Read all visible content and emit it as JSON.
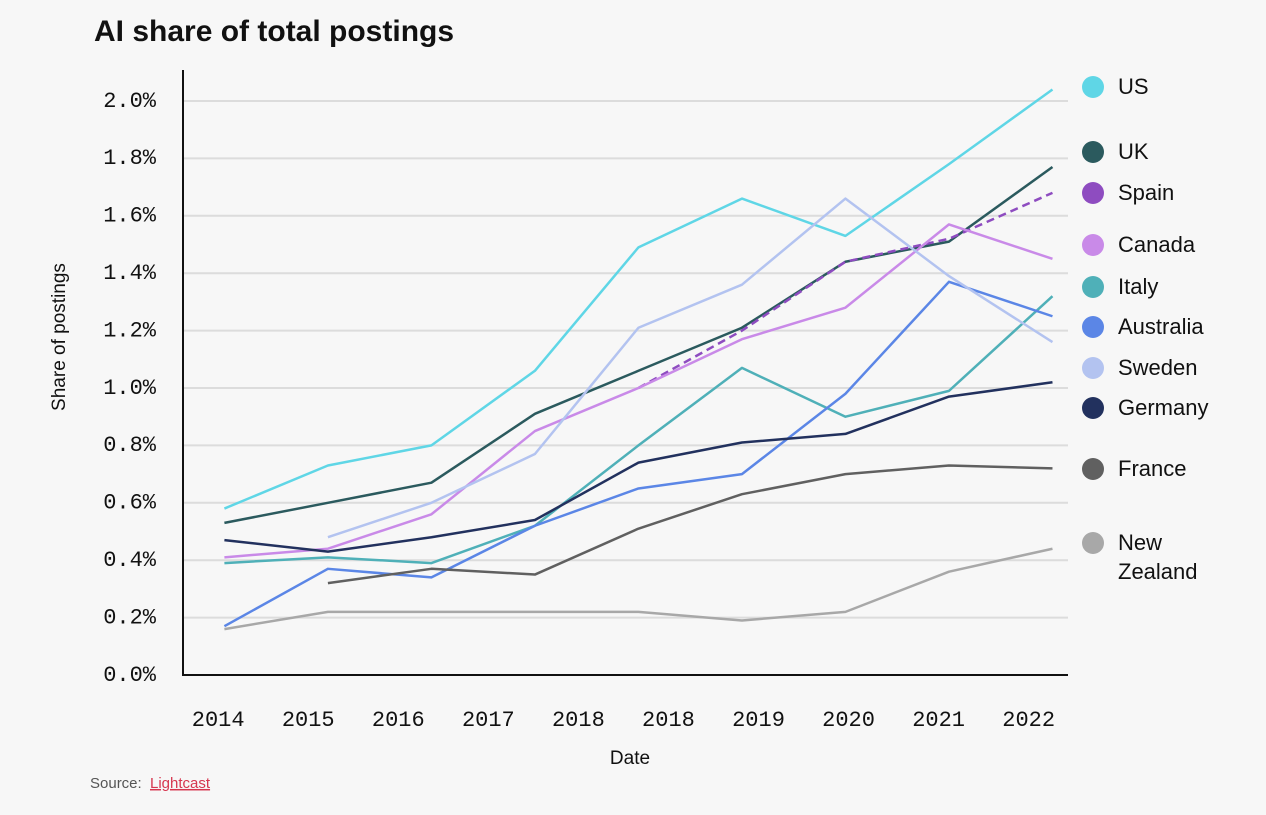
{
  "chart_data": {
    "type": "line",
    "title": "AI share of total postings",
    "x_label": "Date",
    "y_label": "Share of postings",
    "source_label": "Source:",
    "source_link": "Lightcast",
    "x": [
      2014,
      2015,
      2016,
      2017,
      2018,
      2019,
      2020,
      2021,
      2022
    ],
    "xlim": [
      2013.6,
      2022.15
    ],
    "xticks": [
      {
        "value": 2013.94,
        "label": "2014"
      },
      {
        "value": 2014.81,
        "label": "2015"
      },
      {
        "value": 2015.68,
        "label": "2016"
      },
      {
        "value": 2016.55,
        "label": "2017"
      },
      {
        "value": 2017.42,
        "label": "2018"
      },
      {
        "value": 2018.29,
        "label": "2018"
      },
      {
        "value": 2019.16,
        "label": "2019"
      },
      {
        "value": 2020.03,
        "label": "2020"
      },
      {
        "value": 2020.9,
        "label": "2021"
      },
      {
        "value": 2021.77,
        "label": "2022"
      }
    ],
    "ylim": [
      0,
      2.1
    ],
    "yticks": [
      {
        "value": 0,
        "label": "0.0%"
      },
      {
        "value": 0.2,
        "label": "0.2%"
      },
      {
        "value": 0.4,
        "label": "0.4%"
      },
      {
        "value": 0.6,
        "label": "0.6%"
      },
      {
        "value": 0.8,
        "label": "0.8%"
      },
      {
        "value": 1,
        "label": "1.0%"
      },
      {
        "value": 1.2,
        "label": "1.2%"
      },
      {
        "value": 1.4,
        "label": "1.4%"
      },
      {
        "value": 1.6,
        "label": "1.6%"
      },
      {
        "value": 1.8,
        "label": "1.8%"
      },
      {
        "value": 2,
        "label": "2.0%"
      }
    ],
    "grid": true,
    "legend": "right",
    "series": [
      {
        "name": "US",
        "color": "#5fd6e6",
        "values": [
          0.58,
          0.73,
          0.8,
          1.06,
          1.49,
          1.66,
          1.53,
          1.78,
          2.04
        ]
      },
      {
        "name": "UK",
        "color": "#2b5a5e",
        "values": [
          0.53,
          0.6,
          0.67,
          0.91,
          1.06,
          1.21,
          1.44,
          1.51,
          1.77
        ]
      },
      {
        "name": "Spain",
        "color": "#8e4cc0",
        "dashed": true,
        "values": [
          null,
          null,
          null,
          null,
          1.0,
          1.2,
          1.44,
          1.52,
          1.68
        ]
      },
      {
        "name": "Canada",
        "color": "#c98ae8",
        "values": [
          0.41,
          0.44,
          0.56,
          0.85,
          1.0,
          1.17,
          1.28,
          1.57,
          1.45
        ]
      },
      {
        "name": "Italy",
        "color": "#4fb0b8",
        "values": [
          0.39,
          0.41,
          0.39,
          0.52,
          0.8,
          1.07,
          0.9,
          0.99,
          1.32
        ]
      },
      {
        "name": "Australia",
        "color": "#5b86e6",
        "values": [
          0.17,
          0.37,
          0.34,
          0.52,
          0.65,
          0.7,
          0.98,
          1.37,
          1.25
        ]
      },
      {
        "name": "Sweden",
        "color": "#b3c3f0",
        "values": [
          null,
          0.48,
          0.6,
          0.77,
          1.21,
          1.36,
          1.66,
          1.39,
          1.16
        ]
      },
      {
        "name": "Germany",
        "color": "#22315e",
        "values": [
          0.47,
          0.43,
          0.48,
          0.54,
          0.74,
          0.81,
          0.84,
          0.97,
          1.02
        ]
      },
      {
        "name": "France",
        "color": "#606060",
        "values": [
          null,
          0.32,
          0.37,
          0.35,
          0.51,
          0.63,
          0.7,
          0.73,
          0.72
        ]
      },
      {
        "name": "New Zealand",
        "color": "#a8a8a8",
        "values": [
          0.16,
          0.22,
          0.22,
          0.22,
          0.22,
          0.19,
          0.22,
          0.36,
          0.44
        ]
      }
    ]
  }
}
